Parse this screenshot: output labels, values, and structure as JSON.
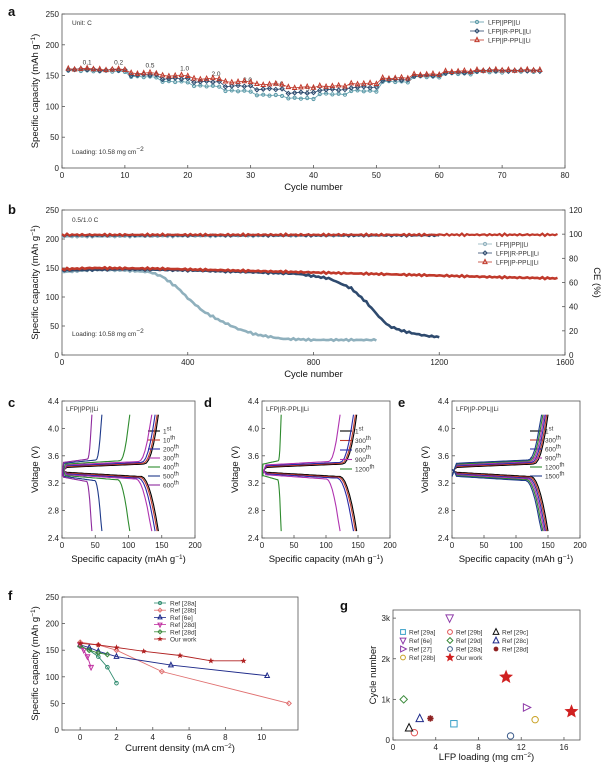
{
  "chart_data": [
    {
      "panel": "a",
      "type": "line",
      "xlabel": "Cycle number",
      "ylabel": "Specific capacity (mAh g⁻¹)",
      "xlim": [
        0,
        80
      ],
      "ylim": [
        0,
        250
      ],
      "xticks": [
        0,
        10,
        20,
        30,
        40,
        50,
        60,
        70,
        80
      ],
      "yticks": [
        0,
        50,
        100,
        150,
        200,
        250
      ],
      "unit_note": "Unit: C",
      "loading_note": "Loading: 10.58 mg cm⁻²",
      "rate_labels": [
        {
          "text": "0.1",
          "cx": 4,
          "y": 168
        },
        {
          "text": "0.2",
          "cx": 9,
          "y": 168
        },
        {
          "text": "0.5",
          "cx": 14,
          "y": 163
        },
        {
          "text": "1.0",
          "cx": 19.5,
          "y": 158
        },
        {
          "text": "2.0",
          "cx": 24.5,
          "y": 149
        },
        {
          "text": "3.0",
          "cx": 29.5,
          "y": 140
        },
        {
          "text": "4.0",
          "cx": 34.5,
          "y": 133
        },
        {
          "text": "5.0",
          "cx": 39.5,
          "y": 125
        }
      ],
      "series": [
        {
          "name": "LFP||PP||Li",
          "color": "#5b9aa8",
          "marker": "circle",
          "steps": [
            [
              1,
              5,
              158
            ],
            [
              6,
              10,
              157
            ],
            [
              11,
              15,
              148
            ],
            [
              16,
              20,
              140
            ],
            [
              21,
              25,
              133
            ],
            [
              26,
              30,
              125
            ],
            [
              31,
              35,
              118
            ],
            [
              36,
              40,
              113
            ],
            [
              41,
              45,
              120
            ],
            [
              46,
              50,
              125
            ],
            [
              51,
              55,
              140
            ],
            [
              56,
              60,
              148
            ],
            [
              61,
              65,
              153
            ],
            [
              66,
              70,
              156
            ],
            [
              71,
              75,
              157
            ]
          ]
        },
        {
          "name": "LFP||R-PPL||Li",
          "color": "#2c4a6e",
          "marker": "diamond",
          "steps": [
            [
              1,
              5,
              160
            ],
            [
              6,
              10,
              159
            ],
            [
              11,
              15,
              151
            ],
            [
              16,
              20,
              145
            ],
            [
              21,
              25,
              140
            ],
            [
              26,
              30,
              133
            ],
            [
              31,
              35,
              128
            ],
            [
              36,
              40,
              122
            ],
            [
              41,
              45,
              127
            ],
            [
              46,
              50,
              131
            ],
            [
              51,
              55,
              143
            ],
            [
              56,
              60,
              150
            ],
            [
              61,
              65,
              155
            ],
            [
              66,
              70,
              158
            ],
            [
              71,
              76,
              158
            ]
          ]
        },
        {
          "name": "LFP||P-PPL||Li",
          "color": "#c0392b",
          "marker": "triangle",
          "steps": [
            [
              1,
              5,
              161
            ],
            [
              6,
              10,
              160
            ],
            [
              11,
              15,
              154
            ],
            [
              16,
              20,
              150
            ],
            [
              21,
              25,
              145
            ],
            [
              26,
              30,
              140
            ],
            [
              31,
              35,
              136
            ],
            [
              36,
              40,
              131
            ],
            [
              41,
              45,
              133
            ],
            [
              46,
              50,
              137
            ],
            [
              51,
              55,
              146
            ],
            [
              56,
              60,
              152
            ],
            [
              61,
              65,
              157
            ],
            [
              66,
              70,
              159
            ],
            [
              71,
              76,
              159
            ]
          ]
        }
      ]
    },
    {
      "panel": "b",
      "type": "line",
      "xlabel": "Cycle number",
      "ylabel": "Specific capacity (mAh g⁻¹)",
      "y2label": "CE (%)",
      "xlim": [
        0,
        1600
      ],
      "ylim": [
        0,
        250
      ],
      "y2lim": [
        0,
        120
      ],
      "xticks": [
        0,
        400,
        800,
        1200,
        1600
      ],
      "yticks": [
        0,
        50,
        100,
        150,
        200,
        250
      ],
      "y2ticks": [
        0,
        20,
        40,
        60,
        80,
        100,
        120
      ],
      "rate_note": "0.5/1.0 C",
      "loading_note": "Loading: 10.58 mg cm⁻²",
      "series": [
        {
          "name": "LFP||PP||Li",
          "color": "#8fb0bd",
          "end": 1000,
          "capacity": [
            [
              0,
              143
            ],
            [
              100,
              147
            ],
            [
              200,
              146
            ],
            [
              280,
              143
            ],
            [
              320,
              135
            ],
            [
              370,
              115
            ],
            [
              400,
              98
            ],
            [
              450,
              75
            ],
            [
              500,
              60
            ],
            [
              560,
              45
            ],
            [
              620,
              35
            ],
            [
              700,
              28
            ],
            [
              800,
              26
            ],
            [
              1000,
              26
            ]
          ],
          "ce": [
            [
              0,
              98
            ],
            [
              1000,
              99
            ]
          ]
        },
        {
          "name": "LFP||R-PPL||Li",
          "color": "#2e4a6e",
          "end": 1200,
          "capacity": [
            [
              0,
              146
            ],
            [
              200,
              148
            ],
            [
              400,
              146
            ],
            [
              600,
              143
            ],
            [
              750,
              140
            ],
            [
              850,
              132
            ],
            [
              920,
              115
            ],
            [
              970,
              90
            ],
            [
              1010,
              65
            ],
            [
              1040,
              50
            ],
            [
              1080,
              42
            ],
            [
              1120,
              37
            ],
            [
              1160,
              33
            ],
            [
              1200,
              31
            ]
          ],
          "ce": [
            [
              0,
              99
            ],
            [
              1200,
              99
            ]
          ]
        },
        {
          "name": "LFP||P-PPL||Li",
          "color": "#c0392b",
          "end": 1580,
          "capacity": [
            [
              0,
              148
            ],
            [
              100,
              150
            ],
            [
              300,
              149
            ],
            [
              600,
              145
            ],
            [
              900,
              141
            ],
            [
              1200,
              137
            ],
            [
              1400,
              134
            ],
            [
              1580,
              132
            ]
          ],
          "ce": [
            [
              0,
              99.5
            ],
            [
              1580,
              99.5
            ]
          ]
        }
      ]
    },
    {
      "panel": "c",
      "type": "line",
      "title": "LFP||PP||Li",
      "xlabel": "Specific capacity (mAh g⁻¹)",
      "ylabel": "Voltage (V)",
      "xlim": [
        0,
        200
      ],
      "ylim": [
        2.4,
        4.4
      ],
      "xticks": [
        0,
        50,
        100,
        150,
        200
      ],
      "yticks": [
        2.4,
        2.8,
        3.2,
        3.6,
        4.0,
        4.4
      ],
      "curves": [
        {
          "label": "1st",
          "color": "#000000",
          "cap": 145
        },
        {
          "label": "10th",
          "color": "#c0392b",
          "cap": 143
        },
        {
          "label": "200th",
          "color": "#2a2aa8",
          "cap": 140
        },
        {
          "label": "300th",
          "color": "#b034b0",
          "cap": 135
        },
        {
          "label": "400th",
          "color": "#2e8b2e",
          "cap": 102
        },
        {
          "label": "500th",
          "color": "#1e3a8a",
          "cap": 60
        },
        {
          "label": "600th",
          "color": "#8e2a9e",
          "cap": 45
        }
      ]
    },
    {
      "panel": "d",
      "type": "line",
      "title": "LFP||R-PPL||Li",
      "xlabel": "Specific capacity (mAh g⁻¹)",
      "ylabel": "Voltage (V)",
      "xlim": [
        0,
        200
      ],
      "ylim": [
        2.4,
        4.4
      ],
      "xticks": [
        0,
        50,
        100,
        150,
        200
      ],
      "yticks": [
        2.4,
        2.8,
        3.2,
        3.6,
        4.0,
        4.4
      ],
      "curves": [
        {
          "label": "1st",
          "color": "#000000",
          "cap": 148
        },
        {
          "label": "300th",
          "color": "#c0392b",
          "cap": 146
        },
        {
          "label": "600th",
          "color": "#2a2aa8",
          "cap": 143
        },
        {
          "label": "900th",
          "color": "#b034b0",
          "cap": 122
        },
        {
          "label": "1200th",
          "color": "#2e8b2e",
          "cap": 30
        }
      ]
    },
    {
      "panel": "e",
      "type": "line",
      "title": "LFP||P-PPL||Li",
      "xlabel": "Specific capacity (mAh g⁻¹)",
      "ylabel": "Voltage (V)",
      "xlim": [
        0,
        200
      ],
      "ylim": [
        2.4,
        4.4
      ],
      "xticks": [
        0,
        50,
        100,
        150,
        200
      ],
      "yticks": [
        2.4,
        2.8,
        3.2,
        3.6,
        4.0,
        4.4
      ],
      "curves": [
        {
          "label": "1st",
          "color": "#000000",
          "cap": 150
        },
        {
          "label": "300th",
          "color": "#c0392b",
          "cap": 148
        },
        {
          "label": "600th",
          "color": "#2a2aa8",
          "cap": 146
        },
        {
          "label": "900th",
          "color": "#b034b0",
          "cap": 144
        },
        {
          "label": "1200th",
          "color": "#2e8b2e",
          "cap": 142
        },
        {
          "label": "1500th",
          "color": "#1e3a8a",
          "cap": 140
        }
      ]
    },
    {
      "panel": "f",
      "type": "line",
      "xlabel": "Current density (mA cm⁻²)",
      "ylabel": "Specific capacity (mAh g⁻¹)",
      "xlim": [
        -1,
        12
      ],
      "ylim": [
        0,
        250
      ],
      "xticks": [
        0,
        2,
        4,
        6,
        8,
        10
      ],
      "yticks": [
        0,
        50,
        100,
        150,
        200,
        250
      ],
      "series": [
        {
          "name": "Ref [28a]",
          "color": "#2e8b6e",
          "marker": "circle",
          "points": [
            [
              0,
              158
            ],
            [
              0.5,
              150
            ],
            [
              1,
              138
            ],
            [
              1.5,
              118
            ],
            [
              2,
              88
            ]
          ]
        },
        {
          "name": "Ref [28b]",
          "color": "#e07070",
          "marker": "diamond",
          "points": [
            [
              0,
              165
            ],
            [
              1,
              160
            ],
            [
              2,
              150
            ],
            [
              4.5,
              110
            ],
            [
              11.5,
              50
            ]
          ]
        },
        {
          "name": "Ref [6e]",
          "color": "#1e2a8a",
          "marker": "triangle",
          "points": [
            [
              0,
              160
            ],
            [
              0.5,
              155
            ],
            [
              1,
              148
            ],
            [
              2,
              138
            ],
            [
              5,
              122
            ],
            [
              10.3,
              102
            ]
          ]
        },
        {
          "name": "Ref [28d]",
          "color": "#c030a0",
          "marker": "triangle-down",
          "points": [
            [
              0,
              160
            ],
            [
              0.2,
              150
            ],
            [
              0.4,
              138
            ],
            [
              0.6,
              118
            ]
          ]
        },
        {
          "name": "Ref [28d]",
          "color": "#3a8a3a",
          "marker": "diamond",
          "points": [
            [
              0,
              158
            ],
            [
              0.5,
              150
            ],
            [
              1,
              145
            ],
            [
              1.5,
              142
            ]
          ]
        },
        {
          "name": "Our work",
          "color": "#b02020",
          "marker": "star",
          "points": [
            [
              0,
              163
            ],
            [
              1,
              160
            ],
            [
              2,
              155
            ],
            [
              3.5,
              148
            ],
            [
              5.5,
              140
            ],
            [
              7.2,
              130
            ],
            [
              9,
              130
            ]
          ]
        }
      ]
    },
    {
      "panel": "g",
      "type": "scatter",
      "xlabel": "LFP loading (mg cm⁻²)",
      "ylabel": "Cycle number",
      "xlim": [
        0,
        17.5
      ],
      "ylim": [
        0,
        3200
      ],
      "xticks": [
        0,
        4,
        8,
        12,
        16
      ],
      "yticks": [
        0,
        1000,
        2000,
        3000
      ],
      "ytick_labels": [
        "0",
        "1k",
        "2k",
        "3k"
      ],
      "points": [
        {
          "name": "Ref [29a]",
          "color": "#3aa0c8",
          "marker": "square",
          "x": 5.7,
          "y": 400
        },
        {
          "name": "Ref [29b]",
          "color": "#e05050",
          "marker": "circle",
          "x": 2.0,
          "y": 180
        },
        {
          "name": "Ref [29c]",
          "color": "#111111",
          "marker": "triangle",
          "x": 1.5,
          "y": 300
        },
        {
          "name": "Ref [6e]",
          "color": "#8e3aa8",
          "marker": "triangle-down",
          "x": 5.3,
          "y": 3000
        },
        {
          "name": "Ref [29d]",
          "color": "#3a8a3a",
          "marker": "diamond",
          "x": 1.0,
          "y": 1000
        },
        {
          "name": "Ref [28c]",
          "color": "#1e2a8a",
          "marker": "triangle",
          "x": 2.5,
          "y": 530
        },
        {
          "name": "Ref [27]",
          "color": "#8e3aa8",
          "marker": "triangle-right",
          "x": 12.5,
          "y": 800
        },
        {
          "name": "Ref [28a]",
          "color": "#3a5a8a",
          "marker": "circle",
          "x": 11.0,
          "y": 100
        },
        {
          "name": "Ref [28d]",
          "color": "#8e2020",
          "marker": "asterisk",
          "x": 3.5,
          "y": 530
        },
        {
          "name": "Ref [28b]",
          "color": "#c8a020",
          "marker": "circle",
          "x": 13.3,
          "y": 500
        },
        {
          "name": "Our work",
          "color": "#d02020",
          "marker": "star",
          "x": 10.58,
          "y": 1550
        },
        {
          "name": "Our work",
          "color": "#d02020",
          "marker": "star",
          "x": 16.7,
          "y": 700,
          "no_legend": true
        }
      ]
    }
  ]
}
